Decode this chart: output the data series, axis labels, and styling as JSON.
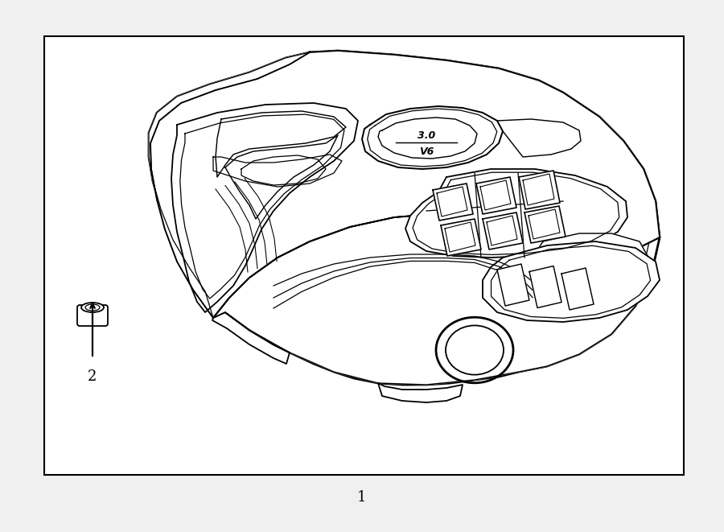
{
  "bg_color": "#f0f0f0",
  "box_color": "#ffffff",
  "lc": "#000000",
  "lw": 1.3,
  "tlw": 2.0,
  "label1": "1",
  "label2": "2",
  "figsize": [
    9.0,
    6.61
  ],
  "dpi": 100,
  "font_size": 13
}
